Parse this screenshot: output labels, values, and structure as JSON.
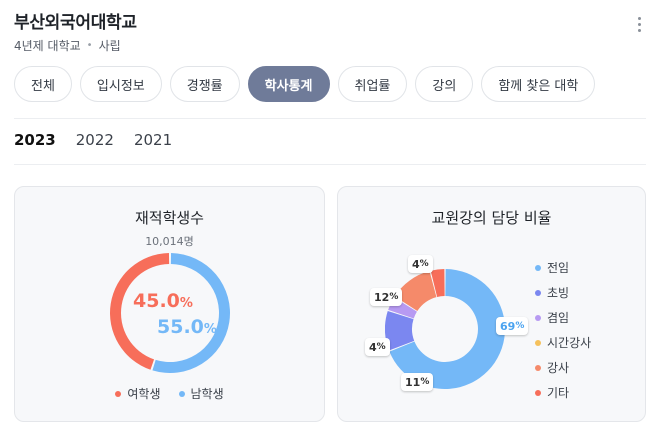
{
  "header": {
    "university_name": "부산외국어대학교",
    "type": "4년제 대학교",
    "ownership": "사립",
    "separator": "•"
  },
  "tabs": [
    {
      "label": "전체",
      "active": false
    },
    {
      "label": "입시정보",
      "active": false
    },
    {
      "label": "경쟁률",
      "active": false
    },
    {
      "label": "학사통계",
      "active": true
    },
    {
      "label": "취업률",
      "active": false
    },
    {
      "label": "강의",
      "active": false
    },
    {
      "label": "함께 찾은 대학",
      "active": false
    }
  ],
  "years": [
    {
      "label": "2023",
      "active": true
    },
    {
      "label": "2022",
      "active": false
    },
    {
      "label": "2021",
      "active": false
    }
  ],
  "students_card": {
    "title": "재적학생수",
    "total": "10,014명",
    "female_value": "45.0",
    "male_value": "55.0",
    "percent_sign": "%",
    "legend": [
      {
        "label": "여학생",
        "color": "#f76e5a"
      },
      {
        "label": "남학생",
        "color": "#74b8f7"
      }
    ]
  },
  "faculty_card": {
    "title": "교원강의 담당 비율",
    "legend": [
      {
        "label": "전임",
        "color": "#74b8f7"
      },
      {
        "label": "초빙",
        "color": "#7b87f0"
      },
      {
        "label": "겸임",
        "color": "#b79af2"
      },
      {
        "label": "시간강사",
        "color": "#f5c15c"
      },
      {
        "label": "강사",
        "color": "#f58a6a"
      },
      {
        "label": "기타",
        "color": "#f76e5a"
      }
    ],
    "slice_labels": [
      "69",
      "11",
      "4",
      "12",
      "4"
    ]
  },
  "chart_data": [
    {
      "type": "pie",
      "title": "재적학생수",
      "categories": [
        "여학생",
        "남학생"
      ],
      "values": [
        45.0,
        55.0
      ],
      "colors": [
        "#f76e5a",
        "#74b8f7"
      ]
    },
    {
      "type": "pie",
      "title": "교원강의 담당 비율",
      "categories": [
        "전임",
        "초빙",
        "겸임",
        "시간강사",
        "강사",
        "기타"
      ],
      "values": [
        69,
        11,
        4,
        0,
        12,
        4
      ],
      "colors": [
        "#74b8f7",
        "#7b87f0",
        "#b79af2",
        "#f5c15c",
        "#f58a6a",
        "#f76e5a"
      ]
    }
  ]
}
